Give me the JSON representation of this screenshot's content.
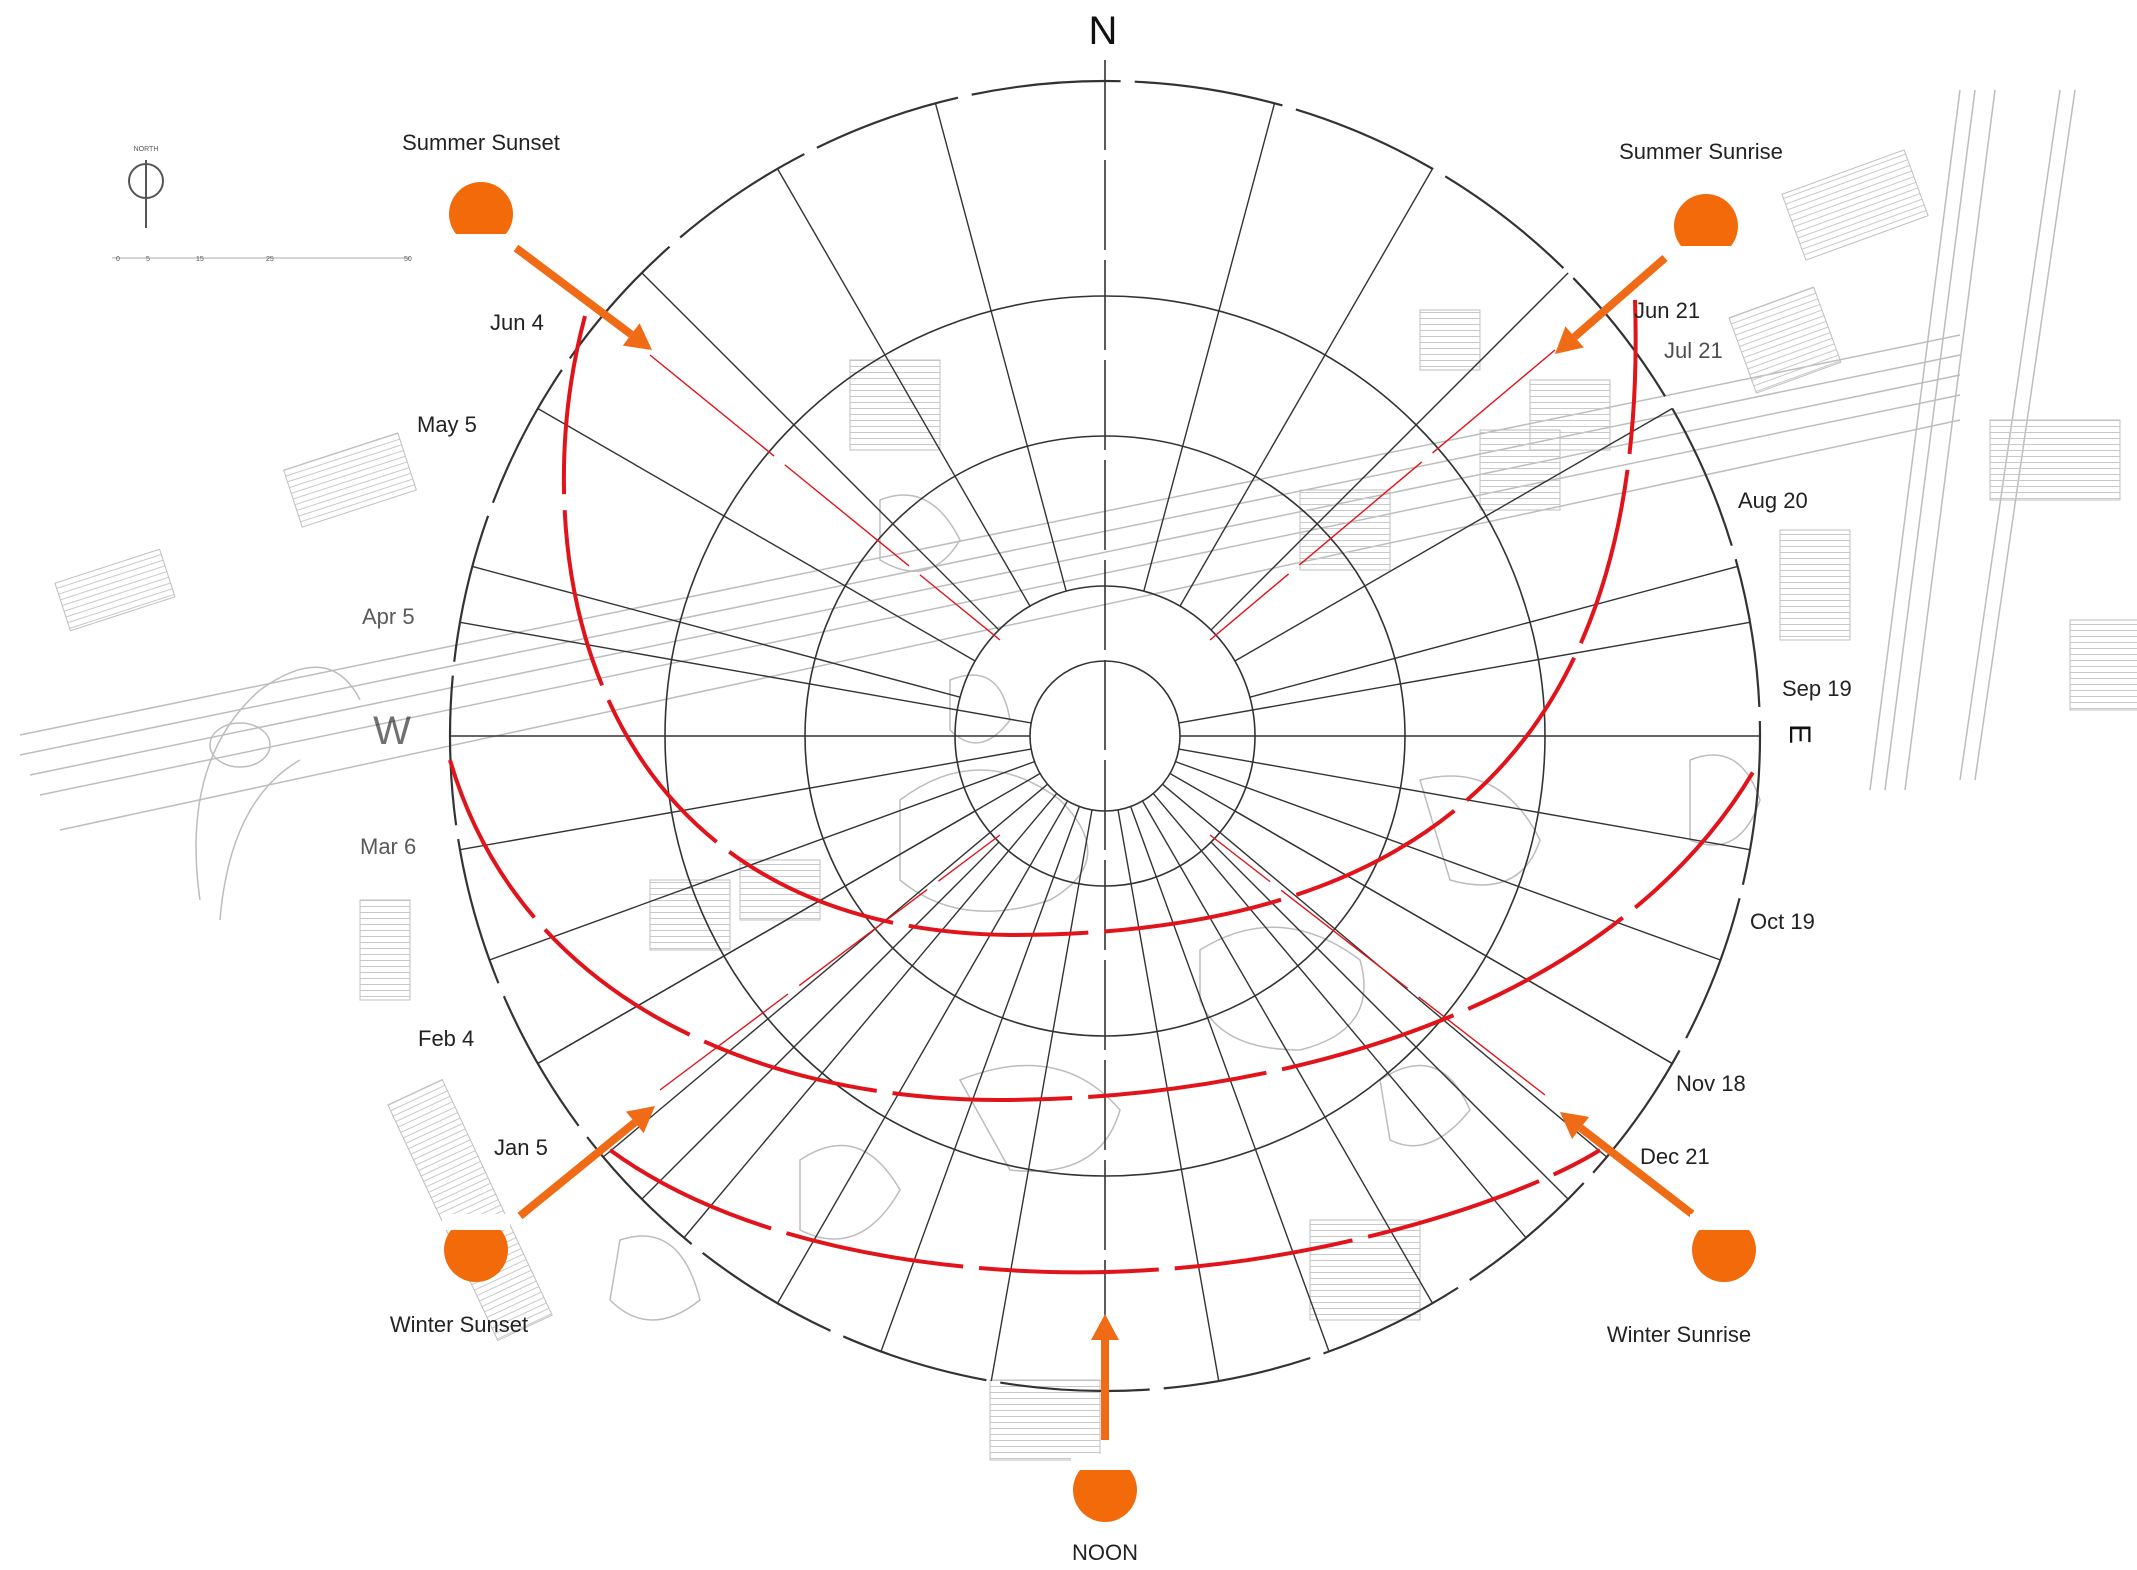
{
  "compass": {
    "north": "N",
    "east": "E",
    "west": "W"
  },
  "north_arrow": {
    "label": "NORTH",
    "scale_ticks": [
      "0",
      "5",
      "15",
      "25",
      "50"
    ]
  },
  "sun_positions": [
    {
      "id": "summer-sunset",
      "label": "Summer Sunset"
    },
    {
      "id": "summer-sunrise",
      "label": "Summer Sunrise"
    },
    {
      "id": "winter-sunset",
      "label": "Winter Sunset"
    },
    {
      "id": "winter-sunrise",
      "label": "Winter Sunrise"
    },
    {
      "id": "noon",
      "label": "NOON"
    }
  ],
  "date_labels_left": [
    "Jun 4",
    "May 5",
    "Apr 5",
    "Mar 6",
    "Feb 4",
    "Jan 5"
  ],
  "date_labels_right": [
    "Jun 21",
    "Jul 21",
    "Aug 20",
    "Sep 19",
    "Oct 19",
    "Nov 18",
    "Dec 21"
  ],
  "colors": {
    "sun": "#f26a0a",
    "arrow": "#ef6b16",
    "sun_path": "#e0141a",
    "grid": "#333333",
    "map_lines": "#b9b9b9",
    "map_hatch": "#cfcfcf"
  }
}
